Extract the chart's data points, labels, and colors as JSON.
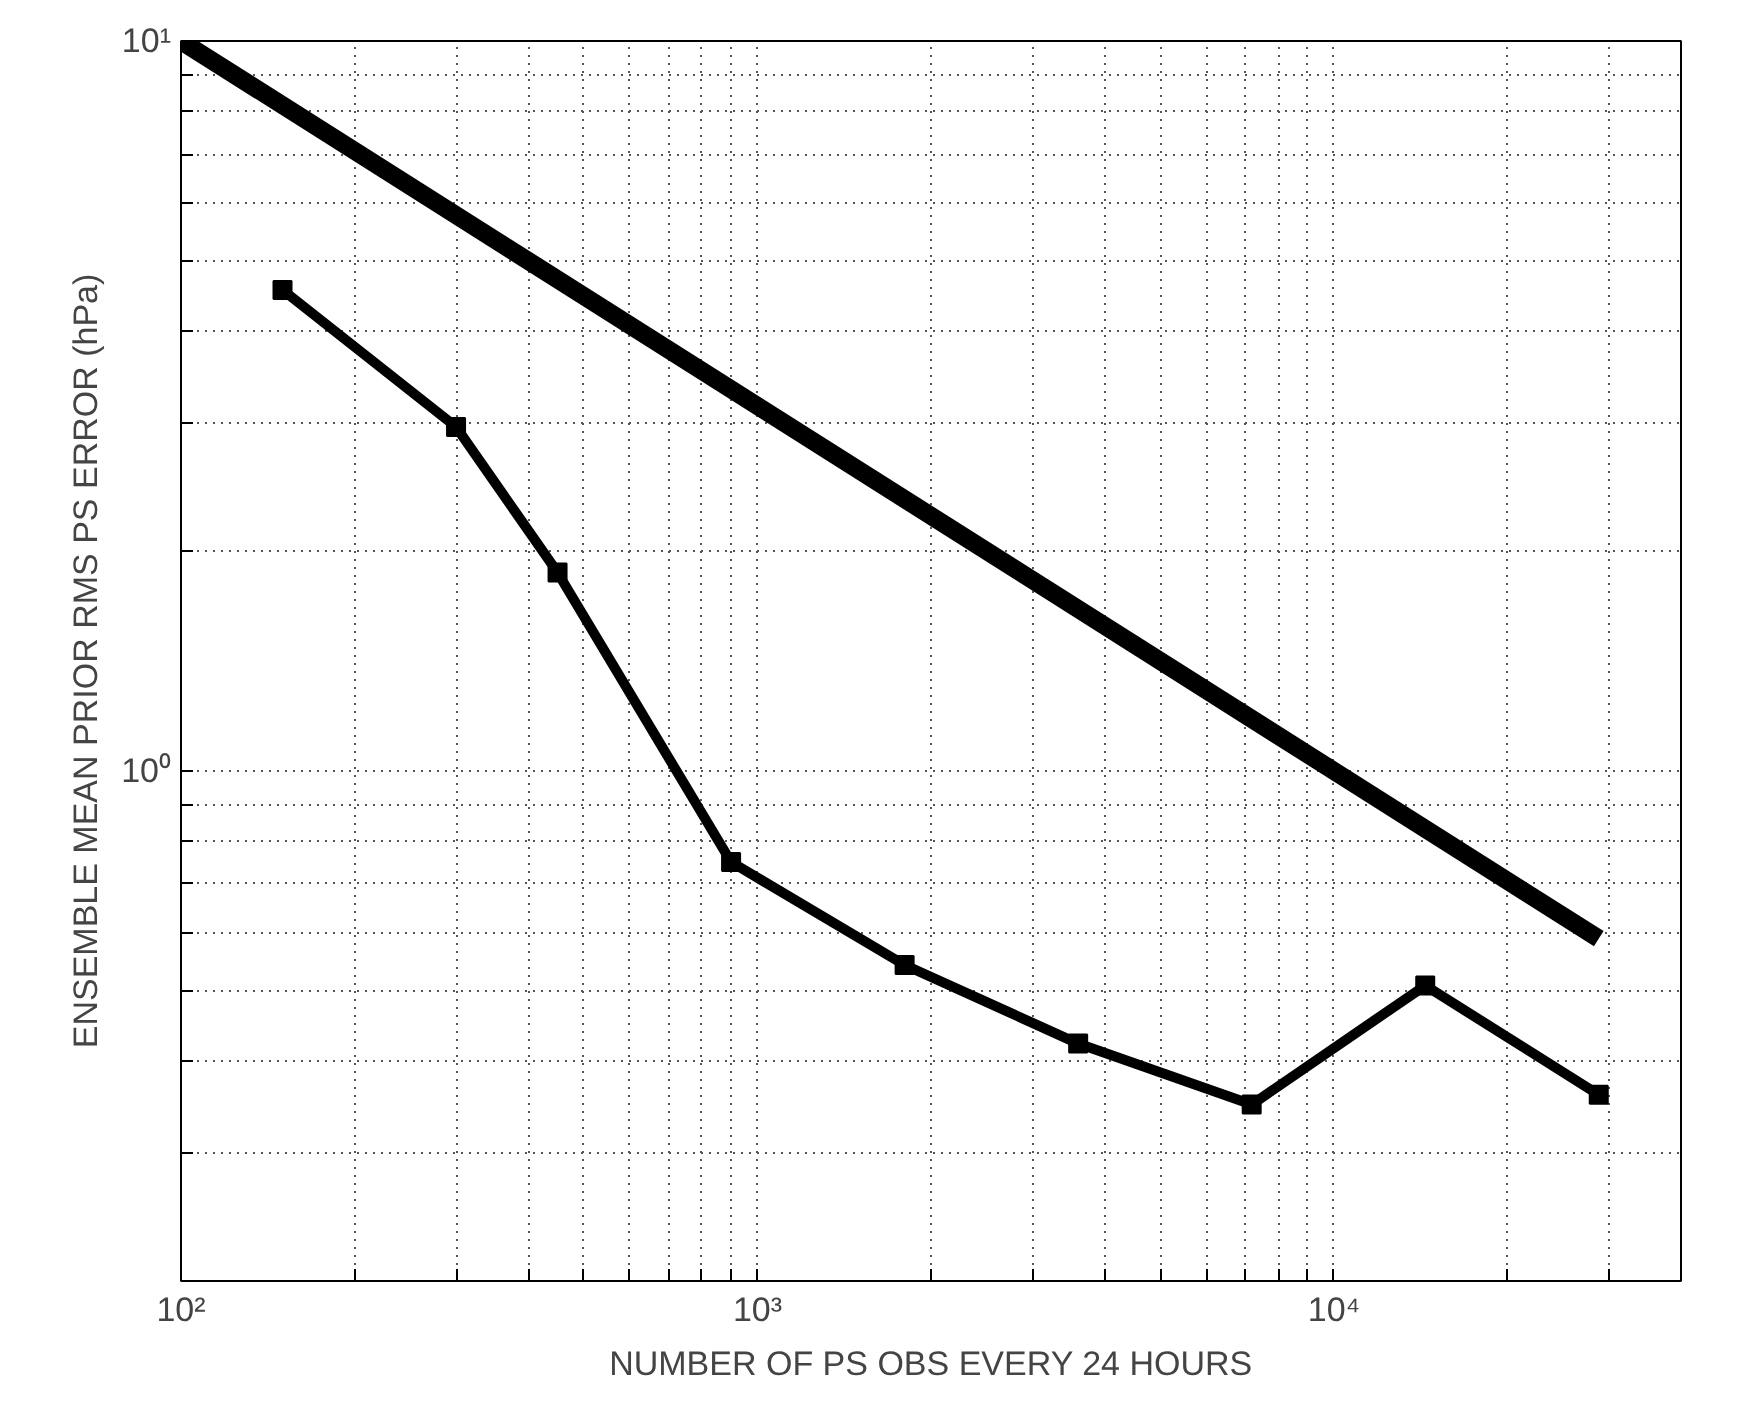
{
  "chart_data": {
    "type": "line",
    "xlabel": "NUMBER OF PS OBS EVERY 24 HOURS",
    "ylabel": "ENSEMBLE MEAN PRIOR RMS PS ERROR (hPa)",
    "log": "xy",
    "grid": true,
    "line_style": "solid",
    "xlim": [
      100,
      40000
    ],
    "ylim": [
      0.2,
      10
    ],
    "xticks": [
      {
        "value": 100,
        "label": "10²"
      },
      {
        "value": 200,
        "label": null
      },
      {
        "value": 300,
        "label": null
      },
      {
        "value": 400,
        "label": null
      },
      {
        "value": 500,
        "label": null
      },
      {
        "value": 600,
        "label": null
      },
      {
        "value": 700,
        "label": null
      },
      {
        "value": 800,
        "label": null
      },
      {
        "value": 900,
        "label": null
      },
      {
        "value": 1000,
        "label": "10³"
      },
      {
        "value": 2000,
        "label": null
      },
      {
        "value": 3000,
        "label": null
      },
      {
        "value": 4000,
        "label": null
      },
      {
        "value": 5000,
        "label": null
      },
      {
        "value": 6000,
        "label": null
      },
      {
        "value": 7000,
        "label": null
      },
      {
        "value": 8000,
        "label": null
      },
      {
        "value": 9000,
        "label": null
      },
      {
        "value": 10000,
        "label": "10⁴"
      },
      {
        "value": 20000,
        "label": null
      },
      {
        "value": 30000,
        "label": null
      },
      {
        "value": 40000,
        "label": null
      }
    ],
    "yticks": [
      {
        "value": 0.2,
        "label": null
      },
      {
        "value": 0.3,
        "label": null
      },
      {
        "value": 0.4,
        "label": null
      },
      {
        "value": 0.5,
        "label": null
      },
      {
        "value": 0.6,
        "label": null
      },
      {
        "value": 0.7,
        "label": null
      },
      {
        "value": 0.8,
        "label": null
      },
      {
        "value": 0.9,
        "label": null
      },
      {
        "value": 1,
        "label": "10⁰"
      },
      {
        "value": 2,
        "label": null
      },
      {
        "value": 3,
        "label": null
      },
      {
        "value": 4,
        "label": null
      },
      {
        "value": 5,
        "label": null
      },
      {
        "value": 6,
        "label": null
      },
      {
        "value": 7,
        "label": null
      },
      {
        "value": 8,
        "label": null
      },
      {
        "value": 9,
        "label": null
      },
      {
        "value": 10,
        "label": "10¹"
      }
    ],
    "series": [
      {
        "color": "#000000",
        "marker": "none",
        "x": [
          100,
          28800
        ],
        "values": [
          10,
          0.589
        ]
      },
      {
        "color": "#000000",
        "marker": "square",
        "x": [
          150,
          300,
          450,
          900,
          1800,
          3600,
          7200,
          14400,
          28800
        ],
        "values": [
          4.56,
          2.96,
          1.87,
          0.75,
          0.542,
          0.423,
          0.349,
          0.508,
          0.36
        ]
      }
    ]
  }
}
